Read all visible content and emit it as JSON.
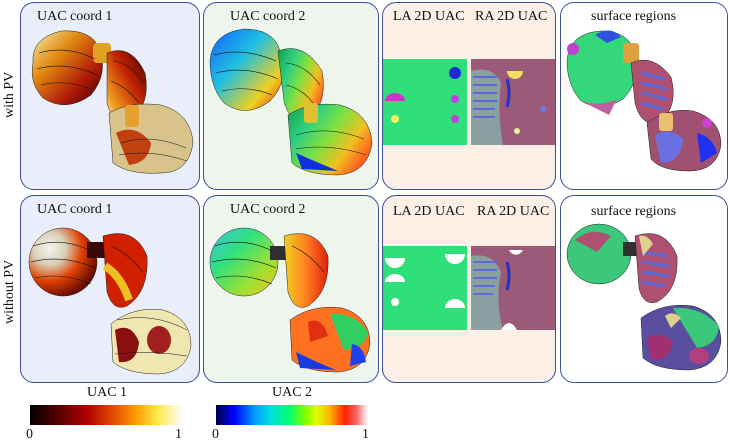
{
  "row_labels": {
    "with_pv": "with PV",
    "without_pv": "without PV"
  },
  "panels": {
    "row1": {
      "uac1_title": "UAC coord 1",
      "uac2_title": "UAC coord 2",
      "la_title": "LA 2D UAC",
      "ra_title": "RA 2D UAC",
      "regions_title": "surface regions"
    },
    "row2": {
      "uac1_title": "UAC coord 1",
      "uac2_title": "UAC coord 2",
      "la_title": "LA 2D UAC",
      "ra_title": "RA 2D UAC",
      "regions_title": "surface regions"
    }
  },
  "colorbars": {
    "uac1": {
      "title": "UAC 1",
      "min": "0",
      "max": "1",
      "colormap": "hot"
    },
    "uac2": {
      "title": "UAC 2",
      "min": "0",
      "max": "1",
      "colormap": "jet"
    }
  },
  "colors": {
    "panel_border": "#3b4f9a",
    "la_map_green": "#2fe07a",
    "ra_map_mauve": "#9a5a78",
    "region_blue": "#5a6ad8"
  }
}
